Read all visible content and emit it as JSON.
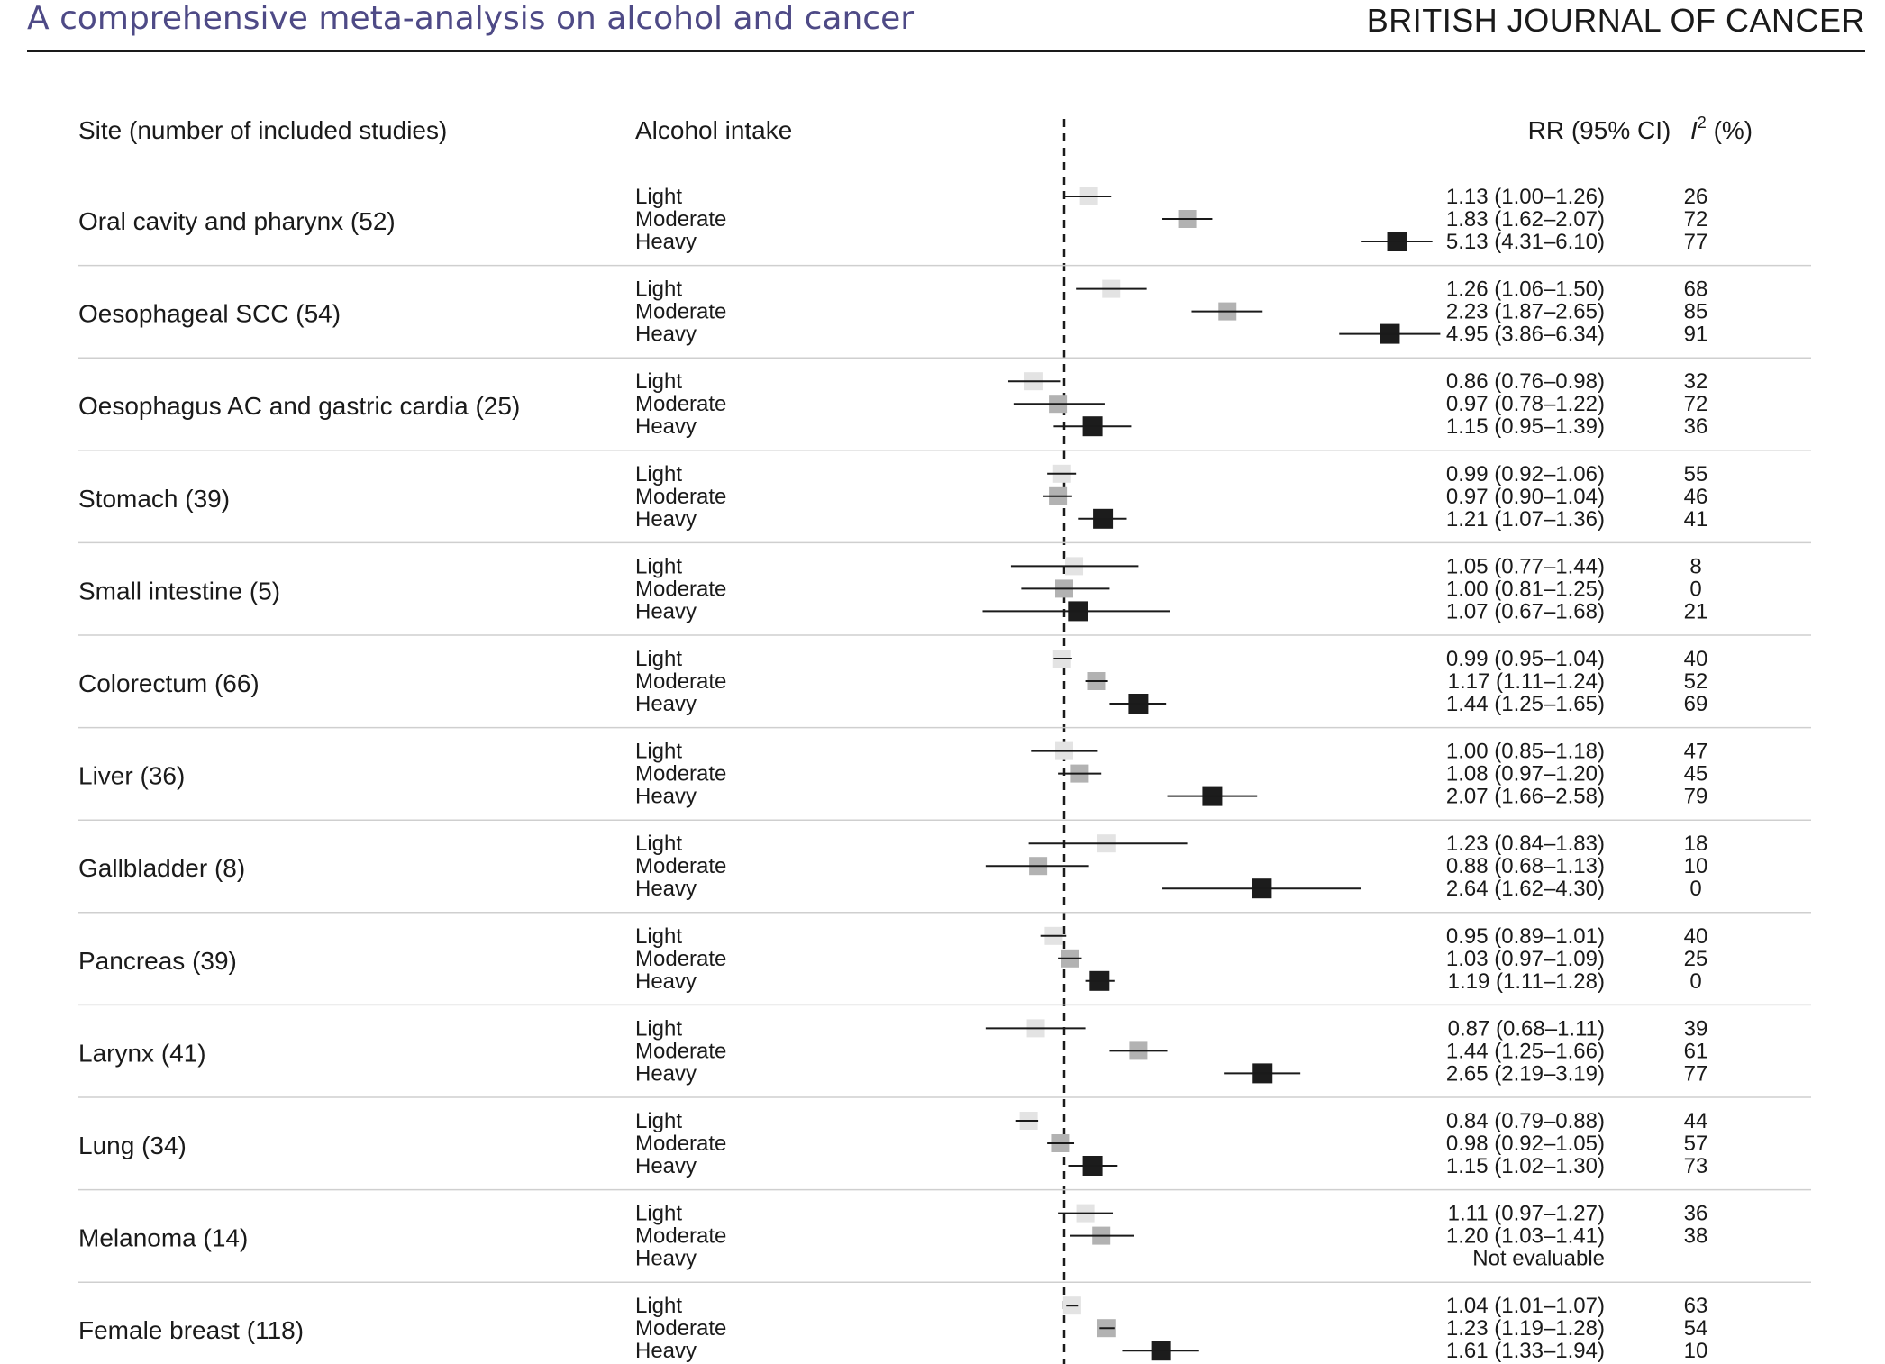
{
  "header": {
    "title": "A comprehensive meta-analysis on alcohol and cancer",
    "journal": "BRITISH JOURNAL OF CANCER"
  },
  "columns": {
    "site": "Site (number of included studies)",
    "intake": "Alcohol intake",
    "rr": "RR (95% CI)",
    "i2_base": "I",
    "i2_sup": "2",
    "i2_unit": " (%)"
  },
  "colors": {
    "light": "#e3e3e3",
    "moderate": "#b2b2b2",
    "heavy": "#1c1c1c",
    "line": "#1a1a1a"
  },
  "chart_data": {
    "type": "forest",
    "reference_line": 1,
    "categories": [
      "Light",
      "Moderate",
      "Heavy"
    ],
    "rows": [
      {
        "site": "Oral cavity and pharynx (52)",
        "estimates": [
          {
            "intake": "Light",
            "rr": 1.13,
            "lo": 1.0,
            "hi": 1.26,
            "label": "1.13 (1.00–1.26)",
            "i2": "26"
          },
          {
            "intake": "Moderate",
            "rr": 1.83,
            "lo": 1.62,
            "hi": 2.07,
            "label": "1.83 (1.62–2.07)",
            "i2": "72"
          },
          {
            "intake": "Heavy",
            "rr": 5.13,
            "lo": 4.31,
            "hi": 6.1,
            "label": "5.13 (4.31–6.10)",
            "i2": "77"
          }
        ]
      },
      {
        "site": "Oesophageal SCC (54)",
        "estimates": [
          {
            "intake": "Light",
            "rr": 1.26,
            "lo": 1.06,
            "hi": 1.5,
            "label": "1.26 (1.06–1.50)",
            "i2": "68"
          },
          {
            "intake": "Moderate",
            "rr": 2.23,
            "lo": 1.87,
            "hi": 2.65,
            "label": "2.23 (1.87–2.65)",
            "i2": "85"
          },
          {
            "intake": "Heavy",
            "rr": 4.95,
            "lo": 3.86,
            "hi": 6.34,
            "label": "4.95 (3.86–6.34)",
            "i2": "91"
          }
        ]
      },
      {
        "site": "Oesophagus AC and gastric cardia (25)",
        "estimates": [
          {
            "intake": "Light",
            "rr": 0.86,
            "lo": 0.76,
            "hi": 0.98,
            "label": "0.86 (0.76–0.98)",
            "i2": "32"
          },
          {
            "intake": "Moderate",
            "rr": 0.97,
            "lo": 0.78,
            "hi": 1.22,
            "label": "0.97 (0.78–1.22)",
            "i2": "72"
          },
          {
            "intake": "Heavy",
            "rr": 1.15,
            "lo": 0.95,
            "hi": 1.39,
            "label": "1.15 (0.95–1.39)",
            "i2": "36"
          }
        ]
      },
      {
        "site": "Stomach (39)",
        "estimates": [
          {
            "intake": "Light",
            "rr": 0.99,
            "lo": 0.92,
            "hi": 1.06,
            "label": "0.99 (0.92–1.06)",
            "i2": "55"
          },
          {
            "intake": "Moderate",
            "rr": 0.97,
            "lo": 0.9,
            "hi": 1.04,
            "label": "0.97 (0.90–1.04)",
            "i2": "46"
          },
          {
            "intake": "Heavy",
            "rr": 1.21,
            "lo": 1.07,
            "hi": 1.36,
            "label": "1.21 (1.07–1.36)",
            "i2": "41"
          }
        ]
      },
      {
        "site": "Small intestine (5)",
        "estimates": [
          {
            "intake": "Light",
            "rr": 1.05,
            "lo": 0.77,
            "hi": 1.44,
            "label": "1.05 (0.77–1.44)",
            "i2": "8"
          },
          {
            "intake": "Moderate",
            "rr": 1.0,
            "lo": 0.81,
            "hi": 1.25,
            "label": "1.00 (0.81–1.25)",
            "i2": "0"
          },
          {
            "intake": "Heavy",
            "rr": 1.07,
            "lo": 0.67,
            "hi": 1.68,
            "label": "1.07 (0.67–1.68)",
            "i2": "21"
          }
        ]
      },
      {
        "site": "Colorectum (66)",
        "estimates": [
          {
            "intake": "Light",
            "rr": 0.99,
            "lo": 0.95,
            "hi": 1.04,
            "label": "0.99 (0.95–1.04)",
            "i2": "40"
          },
          {
            "intake": "Moderate",
            "rr": 1.17,
            "lo": 1.11,
            "hi": 1.24,
            "label": "1.17 (1.11–1.24)",
            "i2": "52"
          },
          {
            "intake": "Heavy",
            "rr": 1.44,
            "lo": 1.25,
            "hi": 1.65,
            "label": "1.44 (1.25–1.65)",
            "i2": "69"
          }
        ]
      },
      {
        "site": "Liver (36)",
        "estimates": [
          {
            "intake": "Light",
            "rr": 1.0,
            "lo": 0.85,
            "hi": 1.18,
            "label": "1.00 (0.85–1.18)",
            "i2": "47"
          },
          {
            "intake": "Moderate",
            "rr": 1.08,
            "lo": 0.97,
            "hi": 1.2,
            "label": "1.08 (0.97–1.20)",
            "i2": "45"
          },
          {
            "intake": "Heavy",
            "rr": 2.07,
            "lo": 1.66,
            "hi": 2.58,
            "label": "2.07 (1.66–2.58)",
            "i2": "79"
          }
        ]
      },
      {
        "site": "Gallbladder (8)",
        "estimates": [
          {
            "intake": "Light",
            "rr": 1.23,
            "lo": 0.84,
            "hi": 1.83,
            "label": "1.23 (0.84–1.83)",
            "i2": "18"
          },
          {
            "intake": "Moderate",
            "rr": 0.88,
            "lo": 0.68,
            "hi": 1.13,
            "label": "0.88 (0.68–1.13)",
            "i2": "10"
          },
          {
            "intake": "Heavy",
            "rr": 2.64,
            "lo": 1.62,
            "hi": 4.3,
            "label": "2.64 (1.62–4.30)",
            "i2": "0"
          }
        ]
      },
      {
        "site": "Pancreas (39)",
        "estimates": [
          {
            "intake": "Light",
            "rr": 0.95,
            "lo": 0.89,
            "hi": 1.01,
            "label": "0.95 (0.89–1.01)",
            "i2": "40"
          },
          {
            "intake": "Moderate",
            "rr": 1.03,
            "lo": 0.97,
            "hi": 1.09,
            "label": "1.03 (0.97–1.09)",
            "i2": "25"
          },
          {
            "intake": "Heavy",
            "rr": 1.19,
            "lo": 1.11,
            "hi": 1.28,
            "label": "1.19 (1.11–1.28)",
            "i2": "0"
          }
        ]
      },
      {
        "site": "Larynx (41)",
        "estimates": [
          {
            "intake": "Light",
            "rr": 0.87,
            "lo": 0.68,
            "hi": 1.11,
            "label": "0.87 (0.68–1.11)",
            "i2": "39"
          },
          {
            "intake": "Moderate",
            "rr": 1.44,
            "lo": 1.25,
            "hi": 1.66,
            "label": "1.44 (1.25–1.66)",
            "i2": "61"
          },
          {
            "intake": "Heavy",
            "rr": 2.65,
            "lo": 2.19,
            "hi": 3.19,
            "label": "2.65 (2.19–3.19)",
            "i2": "77"
          }
        ]
      },
      {
        "site": "Lung (34)",
        "estimates": [
          {
            "intake": "Light",
            "rr": 0.84,
            "lo": 0.79,
            "hi": 0.88,
            "label": "0.84 (0.79–0.88)",
            "i2": "44"
          },
          {
            "intake": "Moderate",
            "rr": 0.98,
            "lo": 0.92,
            "hi": 1.05,
            "label": "0.98 (0.92–1.05)",
            "i2": "57"
          },
          {
            "intake": "Heavy",
            "rr": 1.15,
            "lo": 1.02,
            "hi": 1.3,
            "label": "1.15 (1.02–1.30)",
            "i2": "73"
          }
        ]
      },
      {
        "site": "Melanoma (14)",
        "estimates": [
          {
            "intake": "Light",
            "rr": 1.11,
            "lo": 0.97,
            "hi": 1.27,
            "label": "1.11 (0.97–1.27)",
            "i2": "36"
          },
          {
            "intake": "Moderate",
            "rr": 1.2,
            "lo": 1.03,
            "hi": 1.41,
            "label": "1.20 (1.03–1.41)",
            "i2": "38"
          },
          {
            "intake": "Heavy",
            "rr": null,
            "lo": null,
            "hi": null,
            "label": "Not evaluable",
            "i2": ""
          }
        ]
      },
      {
        "site": "Female breast (118)",
        "estimates": [
          {
            "intake": "Light",
            "rr": 1.04,
            "lo": 1.01,
            "hi": 1.07,
            "label": "1.04 (1.01–1.07)",
            "i2": "63"
          },
          {
            "intake": "Moderate",
            "rr": 1.23,
            "lo": 1.19,
            "hi": 1.28,
            "label": "1.23 (1.19–1.28)",
            "i2": "54"
          },
          {
            "intake": "Heavy",
            "rr": 1.61,
            "lo": 1.33,
            "hi": 1.94,
            "label": "1.61 (1.33–1.94)",
            "i2": "10"
          }
        ]
      }
    ]
  }
}
